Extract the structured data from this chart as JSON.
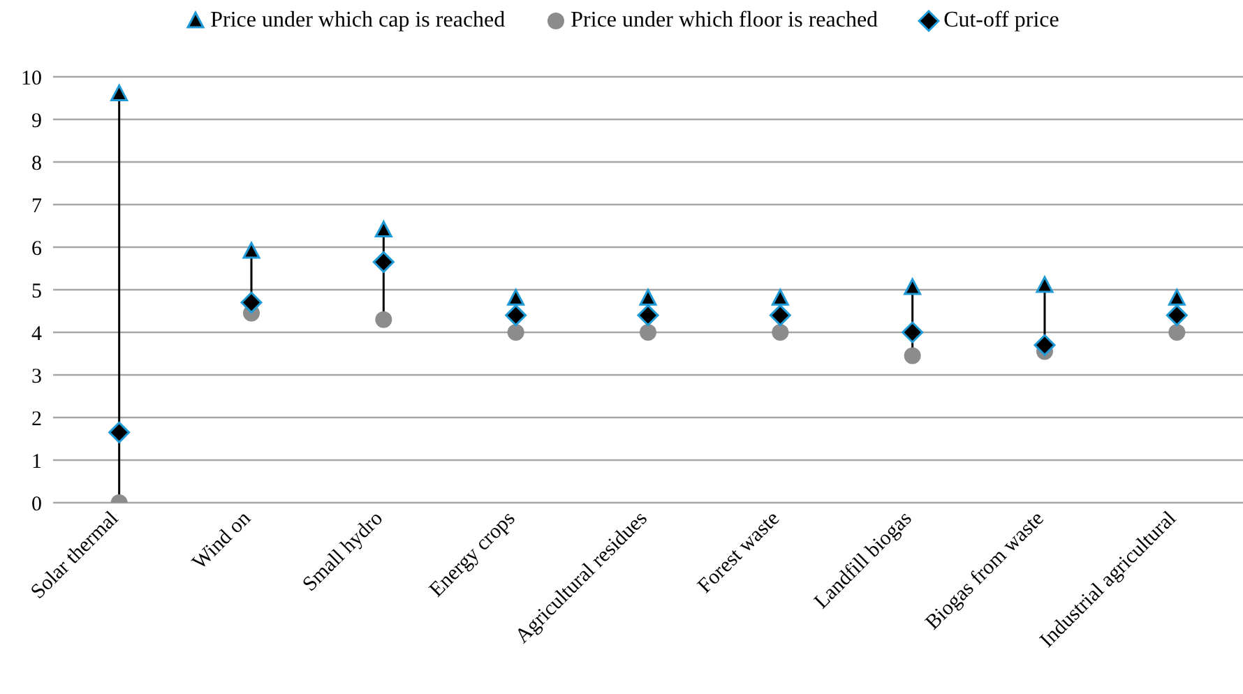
{
  "chart_data": {
    "type": "scatter",
    "categories": [
      "Solar thermal",
      "Wind on",
      "Small hydro",
      "Energy crops",
      "Agricultural residues",
      "Forest waste",
      "Landfill biogas",
      "Biogas from waste",
      "Industrial agricultural"
    ],
    "series": [
      {
        "name": "Price under which cap is reached",
        "color": "#000000",
        "marker": "triangle",
        "values": [
          9.6,
          5.9,
          6.4,
          4.8,
          4.8,
          4.8,
          5.05,
          5.1,
          4.8
        ]
      },
      {
        "name": "Price under which floor is reached",
        "color": "#8c8c8c",
        "marker": "circle",
        "values": [
          0,
          4.45,
          4.3,
          4.0,
          4.0,
          4.0,
          3.45,
          3.55,
          4.0
        ]
      },
      {
        "name": "Cut-off price",
        "color": "#000000",
        "marker": "diamond",
        "values": [
          1.65,
          4.7,
          5.65,
          4.4,
          4.4,
          4.4,
          4.0,
          3.7,
          4.4
        ]
      }
    ],
    "ylim": [
      0,
      10
    ],
    "yticks": [
      0,
      1,
      2,
      3,
      4,
      5,
      6,
      7,
      8,
      9,
      10
    ],
    "grid": "y",
    "legend": "top"
  }
}
